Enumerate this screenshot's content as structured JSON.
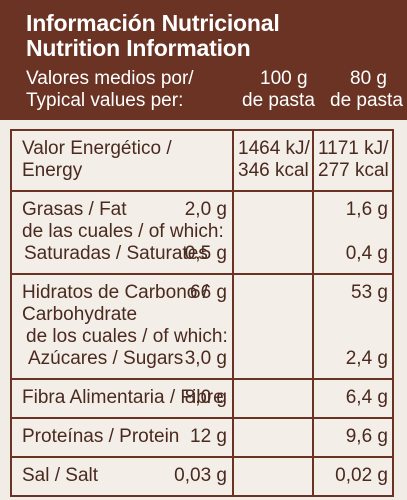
{
  "header": {
    "title_es": "Información Nutricional",
    "title_en": "Nutrition Information",
    "sub_es": "Valores medios por/",
    "sub_en": "Typical values per:",
    "col1_top": "100 g",
    "col1_bottom": "de pasta",
    "col2_top": "80 g",
    "col2_bottom": "de pasta"
  },
  "rows": {
    "energy": {
      "label1": "Valor Energético /",
      "label2": "Energy",
      "v1_kj": "1464 kJ/",
      "v1_kcal": "346 kcal",
      "v2_kj": "1171 kJ/",
      "v2_kcal": "277 kcal"
    },
    "fat": {
      "label1": "Grasas / Fat",
      "label2": "de las cuales / of which:",
      "label3": "Saturadas / Saturates",
      "v1": "2,0 g",
      "v2": "1,6 g",
      "v1_sat": "0,5 g",
      "v2_sat": "0,4 g"
    },
    "carbs": {
      "label1": "Hidratos de Carbono /",
      "label2": "Carbohydrate",
      "label3": "de los cuales / of which:",
      "label4": "Azúcares / Sugars",
      "v1": "66 g",
      "v2": "53 g",
      "v1_sug": "3,0 g",
      "v2_sug": "2,4 g"
    },
    "fibre": {
      "label": "Fibra Alimentaria / Fibre",
      "v1": "8,0 g",
      "v2": "6,4 g"
    },
    "protein": {
      "label": "Proteínas / Protein",
      "v1": "12 g",
      "v2": "9,6 g"
    },
    "salt": {
      "label": "Sal / Salt",
      "v1": "0,03 g",
      "v2": "0,02 g"
    }
  }
}
